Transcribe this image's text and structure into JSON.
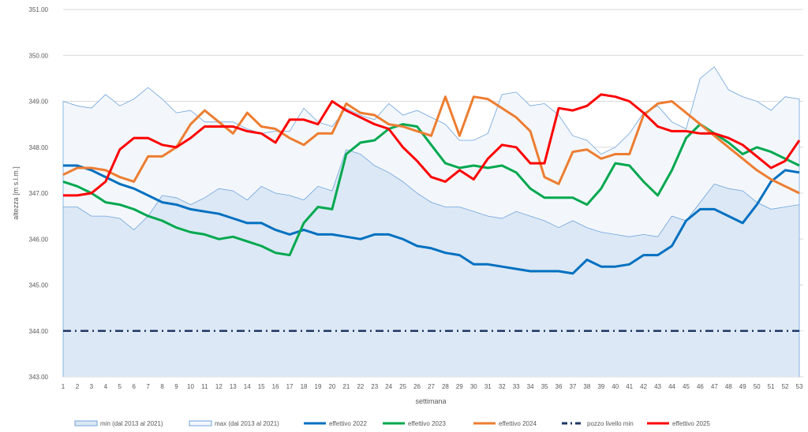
{
  "chart_data": {
    "type": "line",
    "title": "",
    "xlabel": "settimana",
    "ylabel": "altezza [m s.l.m.]",
    "ylim": [
      343,
      351
    ],
    "yticks": [
      "343.00",
      "344.00",
      "345.00",
      "346.00",
      "347.00",
      "348.00",
      "349.00",
      "350.00",
      "351.00"
    ],
    "x": [
      1,
      2,
      3,
      4,
      5,
      6,
      7,
      8,
      9,
      10,
      11,
      12,
      13,
      14,
      15,
      16,
      17,
      18,
      19,
      20,
      21,
      22,
      23,
      24,
      25,
      26,
      27,
      28,
      29,
      30,
      31,
      32,
      33,
      34,
      35,
      36,
      37,
      38,
      39,
      40,
      41,
      42,
      43,
      44,
      45,
      46,
      47,
      48,
      49,
      50,
      51,
      52,
      53
    ],
    "grid": true,
    "legend_position": "bottom",
    "series": [
      {
        "name": "min (dal 2013 al 2021)",
        "kind": "area",
        "color": "#dce8f5",
        "stroke": "#6fa3dc",
        "values": [
          346.7,
          346.7,
          346.5,
          346.5,
          346.45,
          346.2,
          346.5,
          346.95,
          346.9,
          346.75,
          346.9,
          347.1,
          347.05,
          346.85,
          347.15,
          347.0,
          346.95,
          346.85,
          347.15,
          347.05,
          347.95,
          347.85,
          347.6,
          347.45,
          347.25,
          347.0,
          346.8,
          346.7,
          346.7,
          346.6,
          346.5,
          346.45,
          346.6,
          346.5,
          346.4,
          346.25,
          346.4,
          346.25,
          346.15,
          346.1,
          346.05,
          346.1,
          346.05,
          346.5,
          346.4,
          346.8,
          347.2,
          347.1,
          347.05,
          346.8,
          346.65,
          346.7,
          346.75
        ]
      },
      {
        "name": "max (dal 2013 al 2021)",
        "kind": "area",
        "color": "#f3f7fc",
        "stroke": "#6fa3dc",
        "values": [
          349.0,
          348.9,
          348.85,
          349.15,
          348.9,
          349.05,
          349.3,
          349.05,
          348.75,
          348.8,
          348.55,
          348.55,
          348.55,
          348.4,
          348.3,
          348.35,
          348.35,
          348.85,
          348.55,
          348.45,
          348.85,
          348.7,
          348.6,
          348.95,
          348.7,
          348.8,
          348.65,
          348.5,
          348.15,
          348.15,
          348.3,
          349.15,
          349.2,
          348.9,
          348.95,
          348.7,
          348.25,
          348.15,
          347.85,
          348.0,
          348.3,
          348.75,
          348.9,
          348.55,
          348.4,
          349.5,
          349.75,
          349.25,
          349.1,
          349.0,
          348.8,
          349.1,
          349.05
        ]
      },
      {
        "name": "effettivo 2022",
        "kind": "line",
        "color": "#0070c0",
        "values": [
          347.6,
          347.6,
          347.5,
          347.35,
          347.2,
          347.1,
          346.95,
          346.8,
          346.75,
          346.65,
          346.6,
          346.55,
          346.45,
          346.35,
          346.35,
          346.2,
          346.1,
          346.2,
          346.1,
          346.1,
          346.05,
          346.0,
          346.1,
          346.1,
          346.0,
          345.85,
          345.8,
          345.7,
          345.65,
          345.45,
          345.45,
          345.4,
          345.35,
          345.3,
          345.3,
          345.3,
          345.25,
          345.55,
          345.4,
          345.4,
          345.45,
          345.65,
          345.65,
          345.85,
          346.4,
          346.65,
          346.65,
          346.5,
          346.35,
          346.75,
          347.25,
          347.5,
          347.45
        ]
      },
      {
        "name": "effettivo 2023",
        "kind": "line",
        "color": "#00a84f",
        "values": [
          347.25,
          347.15,
          347.0,
          346.8,
          346.75,
          346.65,
          346.5,
          346.4,
          346.25,
          346.15,
          346.1,
          346.0,
          346.05,
          345.95,
          345.85,
          345.7,
          345.65,
          346.35,
          346.7,
          346.65,
          347.85,
          348.1,
          348.15,
          348.4,
          348.5,
          348.45,
          348.05,
          347.65,
          347.55,
          347.6,
          347.55,
          347.6,
          347.45,
          347.1,
          346.9,
          346.9,
          346.9,
          346.75,
          347.1,
          347.65,
          347.6,
          347.25,
          346.95,
          347.5,
          348.2,
          348.5,
          348.3,
          348.1,
          347.85,
          348.0,
          347.9,
          347.75,
          347.6
        ]
      },
      {
        "name": "effettivo 2024",
        "kind": "line",
        "color": "#ed7d31",
        "values": [
          347.4,
          347.55,
          347.55,
          347.5,
          347.35,
          347.25,
          347.8,
          347.8,
          348.0,
          348.5,
          348.8,
          348.55,
          348.3,
          348.75,
          348.45,
          348.4,
          348.2,
          348.05,
          348.3,
          348.3,
          348.95,
          348.75,
          348.7,
          348.5,
          348.45,
          348.35,
          348.25,
          349.1,
          348.25,
          349.1,
          349.05,
          348.85,
          348.65,
          348.35,
          347.35,
          347.2,
          347.9,
          347.95,
          347.75,
          347.85,
          347.85,
          348.7,
          348.95,
          349.0,
          348.75,
          348.5,
          348.25,
          348.0,
          347.75,
          347.5,
          347.3,
          347.15,
          347.0
        ]
      },
      {
        "name": "pozzo livello min",
        "kind": "dashdot",
        "color": "#1f3864",
        "values": [
          344,
          344,
          344,
          344,
          344,
          344,
          344,
          344,
          344,
          344,
          344,
          344,
          344,
          344,
          344,
          344,
          344,
          344,
          344,
          344,
          344,
          344,
          344,
          344,
          344,
          344,
          344,
          344,
          344,
          344,
          344,
          344,
          344,
          344,
          344,
          344,
          344,
          344,
          344,
          344,
          344,
          344,
          344,
          344,
          344,
          344,
          344,
          344,
          344,
          344,
          344,
          344,
          344
        ]
      },
      {
        "name": "effettivo 2025",
        "kind": "line",
        "color": "#ff0000",
        "values": [
          346.95,
          346.95,
          347.0,
          347.25,
          347.95,
          348.2,
          348.2,
          348.05,
          348.0,
          348.2,
          348.45,
          348.45,
          348.45,
          348.35,
          348.3,
          348.1,
          348.6,
          348.6,
          348.5,
          349.0,
          348.8,
          348.65,
          348.5,
          348.4,
          348.0,
          347.7,
          347.35,
          347.25,
          347.5,
          347.3,
          347.75,
          348.05,
          348.0,
          347.65,
          347.65,
          348.85,
          348.8,
          348.9,
          349.15,
          349.1,
          349.0,
          348.75,
          348.45,
          348.35,
          348.35,
          348.3,
          348.3,
          348.2,
          348.05,
          347.8,
          347.55,
          347.7,
          348.15
        ]
      }
    ]
  }
}
